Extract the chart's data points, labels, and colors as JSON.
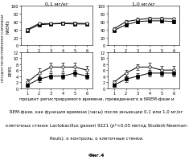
{
  "title_left": "0,1 мг/кг",
  "title_right": "1,0 мг/кг",
  "ylabel_nrems": "NREMS",
  "ylabel_rems": "REMS",
  "ylabel_main": "ПРОЦЕНТ РЕГИСТРИРУЕМОГО ВРЕМЕНИ",
  "xticks": [
    1,
    2,
    3,
    4,
    5,
    6
  ],
  "nrems_left_control": [
    40,
    55,
    55,
    56,
    56,
    55
  ],
  "nrems_left_treatment": [
    38,
    52,
    54,
    55,
    54,
    54
  ],
  "nrems_left_control_err": [
    3,
    3,
    3,
    3,
    3,
    3
  ],
  "nrems_left_treatment_err": [
    3,
    3,
    3,
    2,
    3,
    3
  ],
  "nrems_right_control": [
    42,
    60,
    65,
    68,
    68,
    67
  ],
  "nrems_right_treatment": [
    38,
    52,
    60,
    62,
    62,
    60
  ],
  "nrems_right_control_err": [
    3,
    3,
    4,
    3,
    3,
    3
  ],
  "nrems_right_treatment_err": [
    3,
    4,
    4,
    4,
    4,
    4
  ],
  "rems_left_control": [
    2,
    5,
    7,
    7,
    7,
    6
  ],
  "rems_left_treatment": [
    1,
    3,
    4,
    4,
    5,
    4
  ],
  "rems_left_control_err": [
    1,
    1.5,
    1.5,
    1.5,
    1.5,
    1.5
  ],
  "rems_left_treatment_err": [
    0.5,
    1,
    1,
    1,
    1,
    1
  ],
  "rems_right_control": [
    2,
    5,
    7,
    7,
    6,
    6
  ],
  "rems_right_treatment": [
    1,
    3,
    4,
    5,
    5,
    5
  ],
  "rems_right_control_err": [
    0.5,
    1,
    1,
    1.5,
    1.5,
    1.5
  ],
  "rems_right_treatment_err": [
    0.5,
    1,
    1,
    1,
    1,
    1
  ],
  "nrems_ylim": [
    0,
    100
  ],
  "nrems_yticks": [
    0,
    20,
    40,
    60,
    80,
    100
  ],
  "rems_ylim": [
    0,
    12
  ],
  "rems_yticks": [
    0,
    2,
    4,
    6,
    8,
    10,
    12
  ],
  "bg_color": "#ffffff",
  "caption_line1": "процент регистрируемого времени, проведенного в NREM-фазе и",
  "caption_line2": "REM-фазе, как функция времени (часы) после инъекции 0,1 или 1,0 мг/кг",
  "caption_line3": "клеточных стенок Lactobacillus gasseri 9221 (p*<0,05 метод Student-Newman-",
  "caption_line4": "Keuls); о контроль; о клеточные стенки.",
  "caption_line5": "Фиг.4"
}
